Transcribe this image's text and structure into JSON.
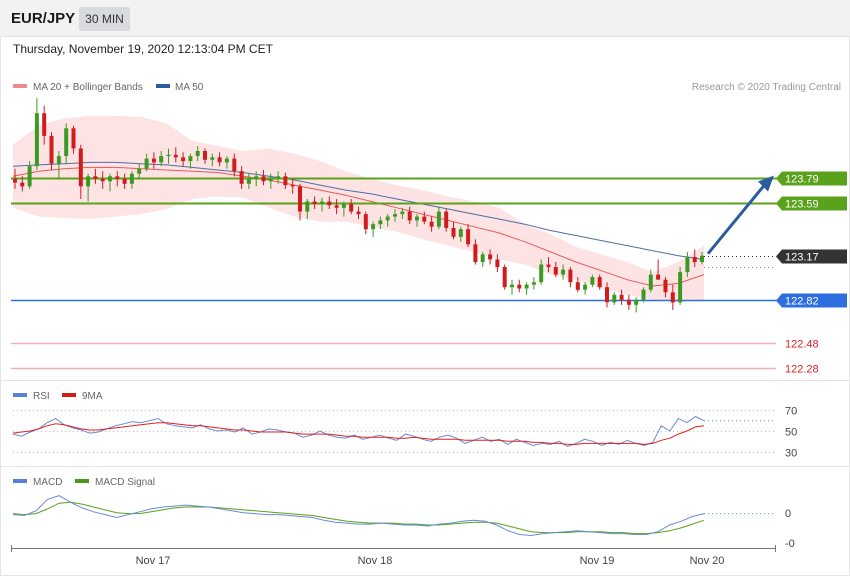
{
  "header": {
    "symbol": "EUR/JPY",
    "timeframe": "30 MIN",
    "datetime": "Thursday, November 19, 2020 12:13:04 PM CET"
  },
  "legend": {
    "ma20_label": "MA 20 + Bollinger Bands",
    "ma50_label": "MA 50",
    "source": "Research © 2020 Trading Central"
  },
  "rsi_legend": {
    "rsi": "RSI",
    "ma": "9MA"
  },
  "macd_legend": {
    "macd": "MACD",
    "signal": "MACD Signal"
  },
  "colors": {
    "resistance": "#5aa21b",
    "support": "#2d6fe0",
    "lower_support": "#e07070",
    "current": "#333333",
    "arrow": "#2b5d9e",
    "ma20": "#e85a5a",
    "ma50": "#4f6ea6",
    "bands": "#fde3e3",
    "candle_up": "#3c9a22",
    "candle_down": "#d01c1c",
    "rsi": "#6a8ad6",
    "rsi_ma": "#e02020",
    "macd": "#6a8ad6",
    "macd_signal": "#5aa21b"
  },
  "chart_data": [
    {
      "type": "candlestick",
      "name": "price",
      "x_labels": [
        "Nov 17",
        "Nov 18",
        "Nov 19",
        "Nov 20"
      ],
      "ylim": [
        122.2,
        124.5
      ],
      "candles": [
        [
          123.78,
          123.86,
          123.7,
          123.75
        ],
        [
          123.75,
          123.8,
          123.68,
          123.72
        ],
        [
          123.72,
          123.92,
          123.7,
          123.88
        ],
        [
          123.88,
          124.42,
          123.85,
          124.3
        ],
        [
          124.3,
          124.36,
          124.05,
          124.12
        ],
        [
          124.12,
          124.15,
          123.85,
          123.9
        ],
        [
          123.9,
          124.0,
          123.78,
          123.96
        ],
        [
          123.96,
          124.22,
          123.9,
          124.18
        ],
        [
          124.18,
          124.2,
          123.98,
          124.02
        ],
        [
          124.02,
          124.05,
          123.62,
          123.72
        ],
        [
          123.72,
          123.82,
          123.6,
          123.8
        ],
        [
          123.8,
          123.86,
          123.74,
          123.78
        ],
        [
          123.78,
          123.84,
          123.7,
          123.76
        ],
        [
          123.76,
          123.82,
          123.68,
          123.8
        ],
        [
          123.8,
          123.84,
          123.72,
          123.78
        ],
        [
          123.78,
          123.82,
          123.7,
          123.74
        ],
        [
          123.74,
          123.84,
          123.7,
          123.82
        ],
        [
          123.82,
          123.9,
          123.78,
          123.86
        ],
        [
          123.86,
          123.98,
          123.84,
          123.94
        ],
        [
          123.94,
          123.99,
          123.86,
          123.91
        ],
        [
          123.91,
          124.0,
          123.88,
          123.96
        ],
        [
          123.96,
          124.02,
          123.9,
          123.97
        ],
        [
          123.97,
          124.03,
          123.91,
          123.95
        ],
        [
          123.95,
          123.99,
          123.88,
          123.92
        ],
        [
          123.92,
          123.98,
          123.86,
          123.96
        ],
        [
          123.96,
          124.04,
          123.92,
          124.0
        ],
        [
          124.0,
          124.02,
          123.9,
          123.93
        ],
        [
          123.93,
          123.98,
          123.88,
          123.95
        ],
        [
          123.95,
          123.99,
          123.88,
          123.91
        ],
        [
          123.91,
          123.96,
          123.86,
          123.94
        ],
        [
          123.94,
          123.98,
          123.8,
          123.84
        ],
        [
          123.84,
          123.88,
          123.7,
          123.74
        ],
        [
          123.74,
          123.82,
          123.7,
          123.78
        ],
        [
          123.78,
          123.84,
          123.72,
          123.8
        ],
        [
          123.8,
          123.85,
          123.73,
          123.76
        ],
        [
          123.76,
          123.82,
          123.7,
          123.79
        ],
        [
          123.79,
          123.84,
          123.74,
          123.8
        ],
        [
          123.8,
          123.83,
          123.7,
          123.73
        ],
        [
          123.73,
          123.78,
          123.66,
          123.72
        ],
        [
          123.72,
          123.74,
          123.45,
          123.52
        ],
        [
          123.52,
          123.62,
          123.46,
          123.6
        ],
        [
          123.6,
          123.64,
          123.54,
          123.58
        ],
        [
          123.58,
          123.63,
          123.52,
          123.6
        ],
        [
          123.6,
          123.64,
          123.54,
          123.57
        ],
        [
          123.57,
          123.62,
          123.5,
          123.55
        ],
        [
          123.55,
          123.6,
          123.48,
          123.58
        ],
        [
          123.58,
          123.62,
          123.5,
          123.52
        ],
        [
          123.52,
          123.56,
          123.46,
          123.5
        ],
        [
          123.5,
          123.52,
          123.34,
          123.38
        ],
        [
          123.38,
          123.44,
          123.32,
          123.42
        ],
        [
          123.42,
          123.48,
          123.38,
          123.45
        ],
        [
          123.45,
          123.5,
          123.4,
          123.48
        ],
        [
          123.48,
          123.54,
          123.44,
          123.5
        ],
        [
          123.5,
          123.55,
          123.46,
          123.52
        ],
        [
          123.52,
          123.56,
          123.42,
          123.45
        ],
        [
          123.45,
          123.5,
          123.4,
          123.48
        ],
        [
          123.48,
          123.52,
          123.42,
          123.44
        ],
        [
          123.44,
          123.48,
          123.36,
          123.4
        ],
        [
          123.4,
          123.56,
          123.38,
          123.52
        ],
        [
          123.52,
          123.54,
          123.36,
          123.39
        ],
        [
          123.39,
          123.44,
          123.3,
          123.32
        ],
        [
          123.32,
          123.4,
          123.28,
          123.38
        ],
        [
          123.38,
          123.42,
          123.24,
          123.26
        ],
        [
          123.26,
          123.3,
          123.1,
          123.12
        ],
        [
          123.12,
          123.2,
          123.08,
          123.18
        ],
        [
          123.18,
          123.22,
          123.1,
          123.14
        ],
        [
          123.14,
          123.18,
          123.04,
          123.08
        ],
        [
          123.08,
          123.1,
          122.9,
          122.92
        ],
        [
          122.92,
          122.98,
          122.86,
          122.94
        ],
        [
          122.94,
          122.98,
          122.88,
          122.91
        ],
        [
          122.91,
          122.96,
          122.86,
          122.94
        ],
        [
          122.94,
          123.0,
          122.9,
          122.96
        ],
        [
          122.96,
          123.14,
          122.94,
          123.1
        ],
        [
          123.1,
          123.16,
          123.04,
          123.08
        ],
        [
          123.08,
          123.12,
          123.0,
          123.02
        ],
        [
          123.02,
          123.1,
          122.98,
          123.06
        ],
        [
          123.06,
          123.08,
          122.92,
          122.96
        ],
        [
          122.96,
          123.0,
          122.88,
          122.9
        ],
        [
          122.9,
          122.96,
          122.86,
          122.94
        ],
        [
          122.94,
          123.02,
          122.92,
          123.0
        ],
        [
          123.0,
          123.02,
          122.9,
          122.92
        ],
        [
          122.92,
          122.96,
          122.76,
          122.8
        ],
        [
          122.8,
          122.88,
          122.78,
          122.86
        ],
        [
          122.86,
          122.9,
          122.78,
          122.82
        ],
        [
          122.82,
          122.86,
          122.74,
          122.78
        ],
        [
          122.78,
          122.84,
          122.72,
          122.82
        ],
        [
          122.82,
          122.92,
          122.8,
          122.9
        ],
        [
          122.9,
          123.06,
          122.88,
          123.02
        ],
        [
          123.02,
          123.14,
          122.98,
          122.98
        ],
        [
          122.98,
          123.0,
          122.84,
          122.88
        ],
        [
          122.88,
          122.94,
          122.74,
          122.8
        ],
        [
          122.8,
          123.08,
          122.78,
          123.04
        ],
        [
          123.04,
          123.2,
          123.0,
          123.16
        ],
        [
          123.16,
          123.22,
          123.08,
          123.12
        ],
        [
          123.12,
          123.2,
          123.1,
          123.17
        ]
      ],
      "ma20": [
        123.8,
        123.84,
        123.86,
        123.87,
        123.87,
        123.86,
        123.85,
        123.84,
        123.83,
        123.8,
        123.77,
        123.73,
        123.69,
        123.65,
        123.6,
        123.55,
        123.5,
        123.45,
        123.4,
        123.35,
        123.28,
        123.2,
        123.12,
        123.05,
        122.98,
        122.93,
        122.95,
        123.02
      ],
      "ma50": [
        123.88,
        123.89,
        123.9,
        123.91,
        123.91,
        123.9,
        123.89,
        123.87,
        123.85,
        123.83,
        123.8,
        123.77,
        123.73,
        123.69,
        123.66,
        123.62,
        123.58,
        123.54,
        123.5,
        123.46,
        123.42,
        123.37,
        123.33,
        123.29,
        123.25,
        123.21,
        123.17,
        123.14
      ],
      "bb_upper": [
        124.05,
        124.2,
        124.26,
        124.28,
        124.28,
        124.27,
        124.22,
        124.08,
        124.04,
        124.0,
        124.02,
        123.98,
        123.92,
        123.84,
        123.78,
        123.73,
        123.69,
        123.64,
        123.6,
        123.55,
        123.42,
        123.34,
        123.24,
        123.18,
        123.12,
        123.04,
        123.12,
        123.25
      ],
      "bb_lower": [
        123.55,
        123.48,
        123.47,
        123.46,
        123.48,
        123.5,
        123.54,
        123.62,
        123.64,
        123.63,
        123.55,
        123.48,
        123.44,
        123.44,
        123.4,
        123.36,
        123.3,
        123.25,
        123.2,
        123.14,
        123.1,
        123.02,
        122.98,
        122.91,
        122.86,
        122.82,
        122.8,
        122.82
      ]
    },
    {
      "type": "line",
      "name": "RSI",
      "ylim": [
        20,
        80
      ],
      "ticks": [
        "70",
        "50",
        "30"
      ],
      "series": [
        {
          "name": "RSI",
          "values": [
            47,
            45,
            49,
            52,
            58,
            62,
            56,
            53,
            51,
            48,
            49,
            52,
            55,
            57,
            59,
            58,
            60,
            62,
            57,
            55,
            54,
            53,
            56,
            52,
            50,
            51,
            49,
            53,
            47,
            49,
            52,
            51,
            49,
            48,
            44,
            46,
            50,
            46,
            44,
            43,
            46,
            42,
            44,
            46,
            43,
            41,
            47,
            45,
            42,
            40,
            44,
            46,
            43,
            38,
            41,
            44,
            40,
            42,
            37,
            42,
            39,
            36,
            38,
            37,
            40,
            35,
            38,
            42,
            40,
            36,
            39,
            37,
            41,
            38,
            36,
            39,
            55,
            50,
            62,
            58,
            64,
            60
          ]
        },
        {
          "name": "9MA",
          "values": [
            48,
            49,
            50,
            52,
            55,
            57,
            56,
            54,
            52,
            51,
            51,
            52,
            53,
            54,
            55,
            56,
            57,
            58,
            58,
            57,
            56,
            55,
            55,
            54,
            53,
            52,
            51,
            51,
            50,
            49,
            49,
            49,
            49,
            48,
            47,
            47,
            47,
            47,
            46,
            45,
            45,
            44,
            44,
            44,
            44,
            43,
            43,
            44,
            43,
            42,
            42,
            42,
            42,
            41,
            41,
            41,
            41,
            41,
            40,
            40,
            40,
            39,
            39,
            38,
            38,
            37,
            37,
            38,
            38,
            38,
            38,
            38,
            38,
            38,
            37,
            38,
            41,
            43,
            47,
            50,
            54,
            55
          ]
        }
      ]
    },
    {
      "type": "line",
      "name": "MACD",
      "ticks": [
        "0",
        "-0"
      ],
      "ylim": [
        -0.3,
        0.3
      ],
      "series": [
        {
          "name": "MACD",
          "values": [
            0.02,
            0.01,
            0.06,
            0.18,
            0.22,
            0.15,
            0.09,
            0.05,
            0.02,
            -0.01,
            0.02,
            0.05,
            0.08,
            0.1,
            0.11,
            0.12,
            0.11,
            0.1,
            0.08,
            0.06,
            0.04,
            0.03,
            0.02,
            0.02,
            0.01,
            0.0,
            -0.01,
            -0.04,
            -0.06,
            -0.07,
            -0.08,
            -0.08,
            -0.07,
            -0.08,
            -0.09,
            -0.09,
            -0.1,
            -0.08,
            -0.07,
            -0.05,
            -0.04,
            -0.05,
            -0.09,
            -0.15,
            -0.19,
            -0.2,
            -0.18,
            -0.17,
            -0.16,
            -0.15,
            -0.16,
            -0.17,
            -0.18,
            -0.18,
            -0.19,
            -0.19,
            -0.16,
            -0.09,
            -0.05,
            0.0,
            0.03
          ]
        },
        {
          "name": "MACD Signal",
          "values": [
            0.03,
            0.02,
            0.03,
            0.08,
            0.14,
            0.15,
            0.13,
            0.1,
            0.07,
            0.04,
            0.03,
            0.03,
            0.05,
            0.07,
            0.09,
            0.1,
            0.1,
            0.1,
            0.09,
            0.08,
            0.07,
            0.06,
            0.05,
            0.04,
            0.03,
            0.02,
            0.01,
            -0.01,
            -0.03,
            -0.05,
            -0.06,
            -0.07,
            -0.07,
            -0.07,
            -0.08,
            -0.08,
            -0.09,
            -0.09,
            -0.08,
            -0.07,
            -0.06,
            -0.06,
            -0.07,
            -0.1,
            -0.13,
            -0.16,
            -0.17,
            -0.17,
            -0.17,
            -0.16,
            -0.16,
            -0.16,
            -0.17,
            -0.17,
            -0.18,
            -0.18,
            -0.17,
            -0.15,
            -0.12,
            -0.08,
            -0.04
          ]
        }
      ]
    }
  ],
  "levels": [
    {
      "label": "123.79",
      "value": 123.79,
      "kind": "resistance"
    },
    {
      "label": "123.59",
      "value": 123.59,
      "kind": "resistance"
    },
    {
      "label": "123.17",
      "value": 123.17,
      "kind": "current"
    },
    {
      "label": "122.82",
      "value": 122.82,
      "kind": "support"
    },
    {
      "label": "122.48",
      "value": 122.48,
      "kind": "lower"
    },
    {
      "label": "122.28",
      "value": 122.28,
      "kind": "lower"
    }
  ]
}
